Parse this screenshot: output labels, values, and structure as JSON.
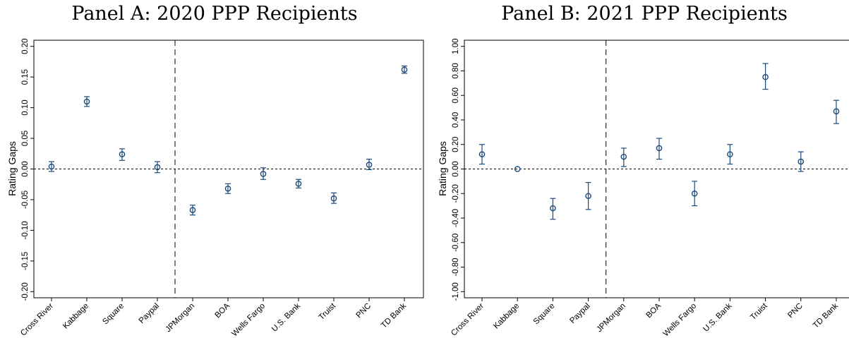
{
  "chart_data": [
    {
      "type": "scatter",
      "title": "Panel A: 2020 PPP Recipients",
      "ylabel": "Rating Gaps",
      "xlabel": "",
      "categories": [
        "Cross River",
        "Kabbage",
        "Square",
        "Paypal",
        "JPMorgan",
        "BOA",
        "Wells Fargo",
        "U.S. Bank",
        "Truist",
        "PNC",
        "TD Bank"
      ],
      "values": [
        0.004,
        0.11,
        0.024,
        0.003,
        -0.067,
        -0.032,
        -0.008,
        -0.024,
        -0.048,
        0.007,
        0.162
      ],
      "ci_low": [
        -0.004,
        0.102,
        0.014,
        -0.006,
        -0.075,
        -0.04,
        -0.017,
        -0.031,
        -0.056,
        -0.001,
        0.156
      ],
      "ci_high": [
        0.012,
        0.118,
        0.033,
        0.012,
        -0.059,
        -0.024,
        0.002,
        -0.017,
        -0.039,
        0.016,
        0.168
      ],
      "ylim": [
        -0.21,
        0.21
      ],
      "yticks": [
        "0.20",
        "0.15",
        "0.10",
        "0.05",
        "0.00",
        "-0.05",
        "-0.10",
        "-0.15",
        "-0.20"
      ],
      "ytick_values": [
        0.2,
        0.15,
        0.1,
        0.05,
        0.0,
        -0.05,
        -0.1,
        -0.15,
        -0.2
      ],
      "reference_line_y": 0,
      "divider_after_category": "Paypal",
      "grid": false,
      "marker_color": "#1b4a7a"
    },
    {
      "type": "scatter",
      "title": "Panel B: 2021 PPP Recipients",
      "ylabel": "Rating Gaps",
      "xlabel": "",
      "categories": [
        "Cross River",
        "Kabbage",
        "Square",
        "Paypal",
        "JPMorgan",
        "BOA",
        "Wells Fargo",
        "U.S. Bank",
        "Truist",
        "PNC",
        "TD Bank"
      ],
      "values": [
        0.12,
        0.0,
        -0.32,
        -0.22,
        0.1,
        0.17,
        -0.2,
        0.12,
        0.75,
        0.06,
        0.47
      ],
      "ci_low": [
        0.04,
        0.0,
        -0.41,
        -0.33,
        0.02,
        0.08,
        -0.3,
        0.04,
        0.65,
        -0.02,
        0.37
      ],
      "ci_high": [
        0.2,
        0.0,
        -0.24,
        -0.11,
        0.17,
        0.25,
        -0.1,
        0.2,
        0.86,
        0.14,
        0.56
      ],
      "ylim": [
        -1.05,
        1.05
      ],
      "yticks": [
        "1.00",
        "0.80",
        "0.60",
        "0.40",
        "0.20",
        "0.00",
        "-0.20",
        "-0.40",
        "-0.60",
        "-0.80",
        "-1.00"
      ],
      "ytick_values": [
        1.0,
        0.8,
        0.6,
        0.4,
        0.2,
        0.0,
        -0.2,
        -0.4,
        -0.6,
        -0.8,
        -1.0
      ],
      "reference_line_y": 0,
      "divider_after_category": "Paypal",
      "grid": false,
      "marker_color": "#1b4a7a"
    }
  ]
}
